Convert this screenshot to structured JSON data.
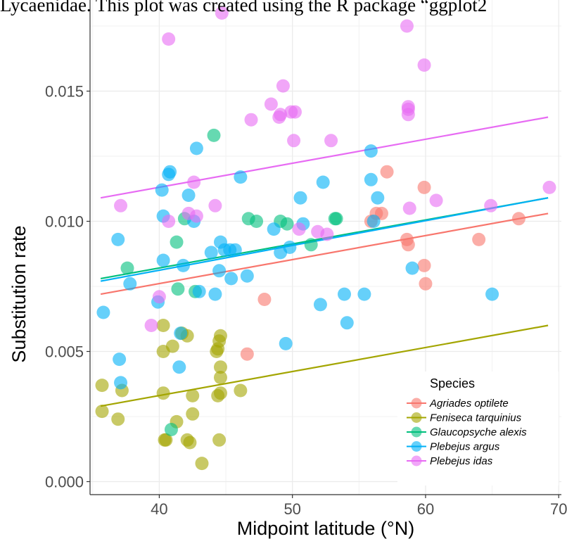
{
  "caption": "Lycaenidae. This plot was created using the R package “ggplot2",
  "chart_data": {
    "type": "scatter",
    "xlabel": "Midpoint latitude (°N)",
    "ylabel": "Substitution rate",
    "xlim": [
      34.8,
      70.2
    ],
    "ylim": [
      -0.0005,
      0.0185
    ],
    "x_ticks": [
      40,
      50,
      60,
      70
    ],
    "x_tick_labels": [
      "40",
      "50",
      "60",
      "70"
    ],
    "y_ticks": [
      0,
      0.005,
      0.01,
      0.015
    ],
    "y_tick_labels": [
      "0.000",
      "0.005",
      "0.010",
      "0.015"
    ],
    "grid": true,
    "legend": {
      "title": "Species",
      "position": "bottom-right"
    },
    "series": [
      {
        "name": "Agriades optilete",
        "color": "#F8766D",
        "points": [
          [
            46.6,
            0.0049
          ],
          [
            47.9,
            0.007
          ],
          [
            55.9,
            0.01
          ],
          [
            56.3,
            0.0103
          ],
          [
            56.7,
            0.0103
          ],
          [
            57.1,
            0.0119
          ],
          [
            58.6,
            0.0093
          ],
          [
            58.7,
            0.0091
          ],
          [
            59.9,
            0.0113
          ],
          [
            59.9,
            0.0083
          ],
          [
            60.0,
            0.0076
          ],
          [
            64.0,
            0.0093
          ],
          [
            67.0,
            0.0101
          ]
        ],
        "trend": [
          [
            35.6,
            0.0072
          ],
          [
            69.2,
            0.0103
          ]
        ]
      },
      {
        "name": "Feniseca tarquinius",
        "color": "#A3A500",
        "points": [
          [
            35.7,
            0.0037
          ],
          [
            35.7,
            0.0027
          ],
          [
            36.9,
            0.0024
          ],
          [
            37.2,
            0.0035
          ],
          [
            40.3,
            0.006
          ],
          [
            40.3,
            0.005
          ],
          [
            40.3,
            0.0034
          ],
          [
            40.4,
            0.0016
          ],
          [
            40.5,
            0.0016
          ],
          [
            41.0,
            0.0052
          ],
          [
            41.3,
            0.0023
          ],
          [
            41.7,
            0.0057
          ],
          [
            42.1,
            0.0056
          ],
          [
            42.1,
            0.0016
          ],
          [
            42.3,
            0.0015
          ],
          [
            42.5,
            0.0033
          ],
          [
            42.5,
            0.0026
          ],
          [
            43.2,
            0.0007
          ],
          [
            44.3,
            0.005
          ],
          [
            44.4,
            0.0051
          ],
          [
            44.5,
            0.0054
          ],
          [
            44.6,
            0.0056
          ],
          [
            44.6,
            0.0044
          ],
          [
            44.6,
            0.004
          ],
          [
            44.6,
            0.0034
          ],
          [
            44.4,
            0.0033
          ],
          [
            44.5,
            0.0016
          ],
          [
            46.1,
            0.0035
          ]
        ],
        "trend": [
          [
            35.6,
            0.0029
          ],
          [
            69.2,
            0.006
          ]
        ]
      },
      {
        "name": "Glaucopsyche alexis",
        "color": "#00BF7D",
        "points": [
          [
            37.6,
            0.0082
          ],
          [
            40.9,
            0.002
          ],
          [
            41.3,
            0.0092
          ],
          [
            41.4,
            0.0074
          ],
          [
            41.9,
            0.0101
          ],
          [
            42.7,
            0.0073
          ],
          [
            44.1,
            0.0133
          ],
          [
            46.7,
            0.0101
          ],
          [
            47.3,
            0.01
          ],
          [
            49.1,
            0.01
          ],
          [
            49.6,
            0.0099
          ],
          [
            51.4,
            0.0091
          ],
          [
            53.2,
            0.0101
          ],
          [
            53.3,
            0.0101
          ]
        ],
        "trend": [
          [
            35.6,
            0.0078
          ],
          [
            69.2,
            0.0109
          ]
        ]
      },
      {
        "name": "Plebejus argus",
        "color": "#00B0F6",
        "points": [
          [
            35.8,
            0.0065
          ],
          [
            36.9,
            0.0093
          ],
          [
            37.0,
            0.0047
          ],
          [
            37.1,
            0.0038
          ],
          [
            37.8,
            0.0076
          ],
          [
            39.9,
            0.0069
          ],
          [
            40.2,
            0.0112
          ],
          [
            40.3,
            0.0102
          ],
          [
            40.3,
            0.0085
          ],
          [
            40.7,
            0.0118
          ],
          [
            40.8,
            0.0119
          ],
          [
            41.5,
            0.0044
          ],
          [
            41.6,
            0.0057
          ],
          [
            41.8,
            0.0083
          ],
          [
            42.2,
            0.011
          ],
          [
            42.6,
            0.01
          ],
          [
            42.8,
            0.0128
          ],
          [
            43.0,
            0.0073
          ],
          [
            43.9,
            0.0088
          ],
          [
            44.2,
            0.0072
          ],
          [
            44.5,
            0.0081
          ],
          [
            44.6,
            0.0092
          ],
          [
            44.9,
            0.0089
          ],
          [
            45.3,
            0.0089
          ],
          [
            45.4,
            0.0078
          ],
          [
            45.7,
            0.0089
          ],
          [
            46.1,
            0.0117
          ],
          [
            46.6,
            0.0079
          ],
          [
            48.6,
            0.0097
          ],
          [
            49.1,
            0.0088
          ],
          [
            49.5,
            0.0053
          ],
          [
            49.8,
            0.009
          ],
          [
            50.6,
            0.0109
          ],
          [
            50.8,
            0.0099
          ],
          [
            52.1,
            0.0068
          ],
          [
            52.3,
            0.0115
          ],
          [
            53.9,
            0.0072
          ],
          [
            54.1,
            0.0061
          ],
          [
            55.4,
            0.0072
          ],
          [
            55.9,
            0.0127
          ],
          [
            55.9,
            0.0116
          ],
          [
            56.1,
            0.01
          ],
          [
            56.4,
            0.0109
          ],
          [
            59.0,
            0.0082
          ],
          [
            65.0,
            0.0072
          ]
        ],
        "trend": [
          [
            35.6,
            0.0077
          ],
          [
            69.2,
            0.0109
          ]
        ]
      },
      {
        "name": "Plebejus idas",
        "color": "#E76BF3",
        "points": [
          [
            37.1,
            0.0106
          ],
          [
            39.4,
            0.006
          ],
          [
            40.0,
            0.0071
          ],
          [
            40.7,
            0.017
          ],
          [
            40.7,
            0.01
          ],
          [
            42.2,
            0.0103
          ],
          [
            42.6,
            0.0115
          ],
          [
            42.8,
            0.0102
          ],
          [
            44.2,
            0.0106
          ],
          [
            44.7,
            0.018
          ],
          [
            46.9,
            0.0139
          ],
          [
            48.4,
            0.0145
          ],
          [
            49.0,
            0.014
          ],
          [
            49.1,
            0.0141
          ],
          [
            49.3,
            0.0152
          ],
          [
            49.9,
            0.0142
          ],
          [
            50.2,
            0.0142
          ],
          [
            50.1,
            0.0131
          ],
          [
            50.5,
            0.0097
          ],
          [
            51.9,
            0.0096
          ],
          [
            52.6,
            0.0095
          ],
          [
            52.9,
            0.0131
          ],
          [
            58.6,
            0.0175
          ],
          [
            58.7,
            0.0144
          ],
          [
            58.7,
            0.0141
          ],
          [
            58.7,
            0.0143
          ],
          [
            58.8,
            0.0105
          ],
          [
            59.9,
            0.016
          ],
          [
            60.8,
            0.0108
          ],
          [
            64.9,
            0.0106
          ],
          [
            69.3,
            0.0113
          ]
        ],
        "trend": [
          [
            35.6,
            0.0109
          ],
          [
            69.2,
            0.014
          ]
        ]
      }
    ]
  }
}
